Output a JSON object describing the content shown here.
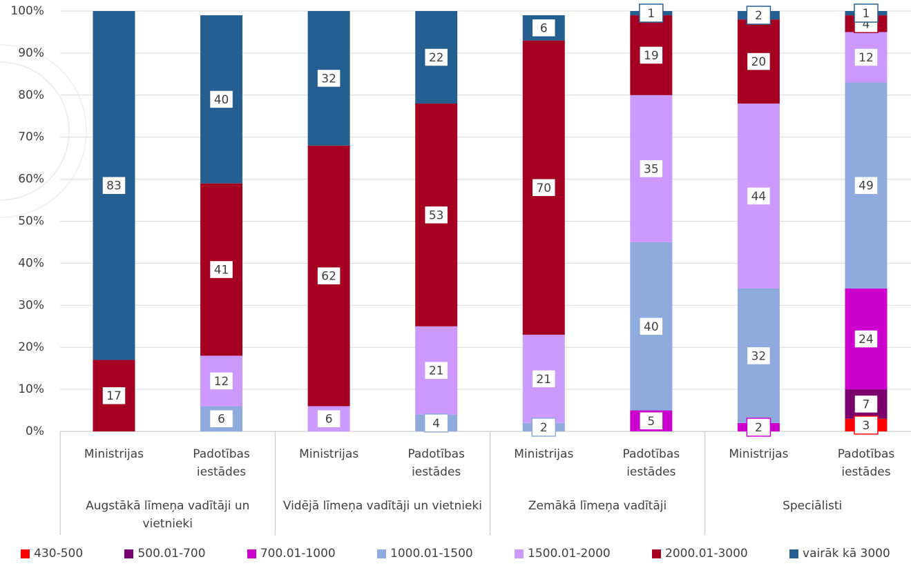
{
  "chart_data": {
    "type": "stacked_bar",
    "categories": [
      "Ministrijas",
      "Padotības iestādes",
      "Ministrijas",
      "Padotības iestādes",
      "Ministrijas",
      "Padotības iestādes",
      "Ministrijas",
      "Padotības iestādes"
    ],
    "groups": [
      "Augstākā līmeņa vadītāji un vietnieki",
      "Vidējā līmeņa vadītāji un vietnieki",
      "Zemākā līmeņa vadītāji",
      "Speciālisti"
    ],
    "series": [
      {
        "name": "430-500",
        "color": "#ff0000",
        "values": [
          null,
          null,
          null,
          null,
          null,
          null,
          null,
          3
        ]
      },
      {
        "name": "500.01-700",
        "color": "#7a006e",
        "values": [
          null,
          null,
          null,
          null,
          null,
          null,
          null,
          7
        ]
      },
      {
        "name": "700.01-1000",
        "color": "#cc00cc",
        "values": [
          null,
          null,
          null,
          null,
          null,
          5,
          2,
          24
        ]
      },
      {
        "name": "1000.01-1500",
        "color": "#8faadc",
        "values": [
          null,
          6,
          null,
          4,
          2,
          40,
          32,
          49
        ]
      },
      {
        "name": "1500.01-2000",
        "color": "#cc99ff",
        "values": [
          null,
          12,
          6,
          21,
          21,
          35,
          44,
          12
        ]
      },
      {
        "name": "2000.01-3000",
        "color": "#a50021",
        "values": [
          17,
          41,
          62,
          53,
          70,
          19,
          20,
          4
        ]
      },
      {
        "name": "vairāk kā 3000",
        "color": "#255e91",
        "values": [
          83,
          40,
          32,
          22,
          6,
          1,
          2,
          1
        ]
      }
    ],
    "ylim": [
      0,
      100
    ],
    "yticks": [
      {
        "value": 0,
        "label": "0%"
      },
      {
        "value": 10,
        "label": "10%"
      },
      {
        "value": 20,
        "label": "20%"
      },
      {
        "value": 30,
        "label": "30%"
      },
      {
        "value": 40,
        "label": "40%"
      },
      {
        "value": 50,
        "label": "50%"
      },
      {
        "value": 60,
        "label": "60%"
      },
      {
        "value": 70,
        "label": "70%"
      },
      {
        "value": 80,
        "label": "80%"
      },
      {
        "value": 90,
        "label": "90%"
      },
      {
        "value": 100,
        "label": "100%"
      }
    ],
    "grid": true,
    "legend": "bottom"
  }
}
